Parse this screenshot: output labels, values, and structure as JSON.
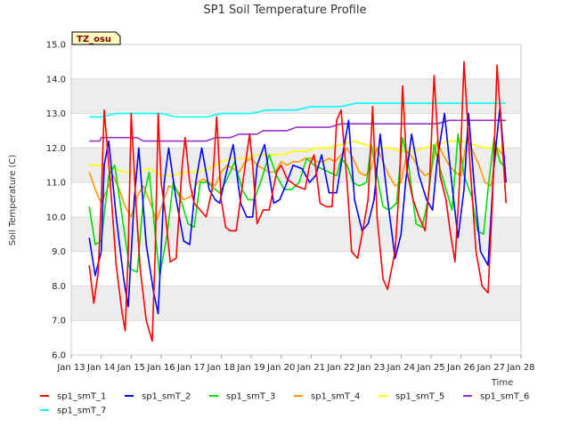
{
  "chart_data": {
    "type": "line",
    "title": "SP1 Soil Temperature Profile",
    "xlabel": "Time",
    "ylabel": "Soil Temperature (C)",
    "badge": "TZ_osu",
    "ylim": [
      6.0,
      15.0
    ],
    "yticks": [
      "6.0",
      "7.0",
      "8.0",
      "9.0",
      "10.0",
      "11.0",
      "12.0",
      "13.0",
      "14.0",
      "15.0"
    ],
    "xlim": [
      13,
      28
    ],
    "xtick_values": [
      13,
      14,
      15,
      16,
      17,
      18,
      19,
      20,
      21,
      22,
      23,
      24,
      25,
      26,
      27,
      28
    ],
    "xticks": [
      "Jan 13",
      "Jan 14",
      "Jan 15",
      "Jan 16",
      "Jan 17",
      "Jan 18",
      "Jan 19",
      "Jan 20",
      "Jan 21",
      "Jan 22",
      "Jan 23",
      "Jan 24",
      "Jan 25",
      "Jan 26",
      "Jan 27",
      "Jan 28"
    ],
    "legend_position": "bottom",
    "series": [
      {
        "name": "sp1_smT_1",
        "color": "#ff0000",
        "x": [
          13.6,
          13.75,
          13.9,
          14.0,
          14.1,
          14.3,
          14.5,
          14.7,
          14.8,
          14.9,
          15.0,
          15.15,
          15.3,
          15.5,
          15.7,
          15.8,
          15.9,
          16.0,
          16.15,
          16.3,
          16.5,
          16.7,
          16.8,
          16.95,
          17.1,
          17.3,
          17.5,
          17.7,
          17.85,
          18.0,
          18.15,
          18.3,
          18.5,
          18.8,
          18.95,
          19.05,
          19.2,
          19.4,
          19.6,
          19.85,
          20.0,
          20.2,
          20.5,
          20.8,
          20.95,
          21.1,
          21.3,
          21.5,
          21.7,
          21.85,
          22.0,
          22.2,
          22.35,
          22.55,
          22.7,
          22.9,
          23.05,
          23.2,
          23.4,
          23.55,
          23.8,
          23.95,
          24.05,
          24.2,
          24.4,
          24.6,
          24.8,
          24.95,
          25.1,
          25.3,
          25.5,
          25.65,
          25.8,
          25.95,
          26.1,
          26.3,
          26.5,
          26.7,
          26.9,
          27.05,
          27.2,
          27.35,
          27.5
        ],
        "values": [
          8.6,
          7.5,
          8.4,
          10.5,
          13.1,
          11.0,
          8.6,
          7.2,
          6.7,
          9.0,
          13.0,
          10.5,
          8.5,
          7.0,
          6.4,
          9.0,
          13.0,
          11.0,
          10.0,
          8.7,
          8.8,
          11.5,
          12.3,
          11.0,
          10.4,
          10.2,
          10.0,
          10.8,
          12.9,
          10.5,
          9.7,
          9.6,
          9.6,
          11.5,
          12.4,
          11.5,
          9.8,
          10.2,
          10.2,
          11.3,
          11.5,
          11.1,
          10.9,
          10.8,
          11.5,
          11.8,
          10.4,
          10.3,
          10.3,
          12.8,
          13.1,
          11.0,
          9.0,
          8.8,
          9.5,
          10.5,
          13.2,
          10.0,
          8.2,
          7.9,
          9.0,
          11.0,
          13.8,
          11.3,
          10.5,
          10.0,
          9.6,
          11.0,
          14.1,
          11.2,
          10.5,
          9.5,
          8.7,
          11.0,
          14.5,
          11.5,
          9.0,
          8.0,
          7.8,
          10.5,
          14.4,
          12.5,
          10.4
        ]
      },
      {
        "name": "sp1_smT_2",
        "color": "#0000ff",
        "x": [
          13.6,
          13.8,
          14.0,
          14.1,
          14.25,
          14.5,
          14.75,
          14.9,
          15.1,
          15.25,
          15.5,
          15.75,
          15.9,
          16.1,
          16.25,
          16.5,
          16.75,
          16.95,
          17.15,
          17.35,
          17.6,
          17.8,
          17.95,
          18.15,
          18.4,
          18.65,
          18.85,
          19.05,
          19.2,
          19.45,
          19.75,
          19.95,
          20.15,
          20.4,
          20.7,
          20.95,
          21.15,
          21.35,
          21.6,
          21.85,
          22.05,
          22.25,
          22.45,
          22.7,
          22.9,
          23.1,
          23.3,
          23.55,
          23.8,
          24.0,
          24.15,
          24.35,
          24.6,
          24.85,
          25.05,
          25.2,
          25.45,
          25.7,
          25.9,
          26.1,
          26.25,
          26.45,
          26.65,
          26.9,
          27.1,
          27.3,
          27.5
        ],
        "values": [
          9.4,
          8.3,
          9.0,
          11.5,
          12.2,
          10.0,
          8.2,
          7.4,
          10.5,
          12.0,
          9.2,
          7.8,
          7.2,
          11.0,
          12.0,
          10.5,
          9.3,
          9.2,
          11.0,
          12.0,
          10.8,
          10.5,
          10.4,
          11.2,
          12.1,
          10.4,
          10.0,
          10.0,
          11.5,
          12.1,
          10.4,
          10.5,
          10.9,
          11.5,
          11.4,
          11.0,
          11.2,
          11.8,
          10.7,
          10.7,
          11.8,
          12.8,
          10.5,
          9.6,
          9.8,
          10.5,
          12.4,
          10.5,
          8.8,
          9.5,
          11.0,
          12.4,
          11.2,
          10.5,
          10.2,
          11.6,
          13.0,
          10.9,
          9.4,
          10.8,
          13.0,
          10.8,
          9.0,
          8.6,
          11.5,
          13.2,
          11.0
        ]
      },
      {
        "name": "sp1_smT_3",
        "color": "#00dd00",
        "x": [
          13.6,
          13.8,
          14.0,
          14.25,
          14.45,
          14.7,
          14.95,
          15.2,
          15.4,
          15.6,
          15.8,
          15.95,
          16.2,
          16.4,
          16.65,
          16.9,
          17.1,
          17.3,
          17.55,
          17.8,
          17.95,
          18.2,
          18.45,
          18.7,
          18.9,
          19.1,
          19.35,
          19.6,
          19.85,
          20.1,
          20.35,
          20.6,
          20.85,
          21.1,
          21.35,
          21.6,
          21.85,
          22.0,
          22.2,
          22.4,
          22.6,
          22.85,
          23.0,
          23.2,
          23.4,
          23.6,
          23.85,
          24.05,
          24.25,
          24.5,
          24.7,
          24.9,
          25.1,
          25.3,
          25.5,
          25.7,
          25.9,
          26.1,
          26.35,
          26.55,
          26.75,
          26.9,
          27.1,
          27.3,
          27.5
        ],
        "values": [
          10.3,
          9.2,
          9.3,
          11.2,
          11.5,
          10.0,
          8.5,
          8.4,
          10.5,
          11.3,
          9.5,
          8.3,
          9.5,
          11.0,
          10.5,
          9.8,
          9.7,
          11.0,
          11.0,
          10.8,
          10.7,
          11.1,
          11.6,
          10.8,
          10.5,
          10.5,
          11.1,
          11.8,
          11.2,
          10.8,
          10.8,
          11.0,
          11.7,
          11.5,
          11.4,
          11.3,
          11.2,
          11.7,
          11.5,
          11.0,
          10.9,
          11.0,
          12.1,
          11.2,
          10.3,
          10.2,
          10.4,
          12.3,
          11.5,
          9.8,
          9.7,
          10.5,
          12.1,
          11.4,
          10.8,
          10.2,
          12.4,
          11.2,
          10.6,
          9.6,
          9.5,
          10.8,
          12.3,
          11.6,
          11.4
        ]
      },
      {
        "name": "sp1_smT_4",
        "color": "#ff9900",
        "x": [
          13.6,
          13.8,
          14.0,
          14.2,
          14.4,
          14.6,
          14.8,
          15.0,
          15.2,
          15.4,
          15.6,
          15.85,
          16.05,
          16.25,
          16.5,
          16.75,
          17.0,
          17.2,
          17.4,
          17.6,
          17.8,
          18.0,
          18.2,
          18.4,
          18.6,
          18.8,
          19.0,
          19.2,
          19.4,
          19.6,
          19.8,
          20.0,
          20.2,
          20.4,
          20.6,
          20.8,
          21.0,
          21.2,
          21.4,
          21.6,
          21.8,
          22.0,
          22.2,
          22.4,
          22.6,
          22.8,
          23.0,
          23.2,
          23.4,
          23.6,
          23.8,
          24.0,
          24.2,
          24.4,
          24.6,
          24.8,
          25.0,
          25.2,
          25.4,
          25.6,
          25.8,
          26.0,
          26.2,
          26.4,
          26.6,
          26.8,
          27.0,
          27.2,
          27.4,
          27.5
        ],
        "values": [
          11.3,
          10.8,
          10.4,
          10.8,
          11.2,
          10.8,
          10.3,
          10.0,
          10.6,
          10.9,
          10.5,
          9.9,
          10.4,
          10.9,
          10.8,
          10.5,
          10.6,
          11.0,
          11.1,
          11.0,
          10.9,
          11.3,
          11.5,
          11.4,
          11.3,
          11.6,
          11.7,
          11.5,
          11.4,
          11.3,
          11.3,
          11.6,
          11.5,
          11.6,
          11.6,
          11.7,
          11.7,
          11.6,
          11.6,
          11.7,
          11.6,
          11.8,
          12.0,
          11.7,
          11.3,
          11.2,
          11.4,
          12.0,
          11.6,
          11.2,
          10.9,
          11.0,
          11.9,
          11.7,
          11.4,
          11.2,
          11.3,
          12.2,
          11.8,
          11.5,
          11.3,
          11.2,
          12.3,
          11.9,
          11.5,
          11.0,
          10.9,
          12.0,
          11.8,
          11.7
        ]
      },
      {
        "name": "sp1_smT_5",
        "color": "#ffff00",
        "x": [
          13.6,
          14.0,
          14.4,
          14.8,
          15.2,
          15.6,
          16.0,
          16.4,
          16.8,
          17.2,
          17.6,
          18.0,
          18.4,
          18.8,
          19.2,
          19.6,
          20.0,
          20.4,
          20.8,
          21.2,
          21.6,
          22.0,
          22.4,
          22.8,
          23.2,
          23.6,
          24.0,
          24.4,
          24.8,
          25.2,
          25.6,
          26.0,
          26.4,
          26.8,
          27.2,
          27.5
        ],
        "values": [
          11.5,
          11.5,
          11.4,
          11.3,
          11.3,
          11.4,
          11.2,
          11.2,
          11.3,
          11.3,
          11.4,
          11.6,
          11.7,
          11.7,
          11.8,
          11.8,
          11.8,
          11.9,
          11.9,
          12.0,
          12.0,
          12.1,
          12.2,
          12.1,
          12.0,
          12.0,
          11.9,
          11.9,
          12.0,
          12.1,
          12.2,
          12.2,
          12.1,
          12.0,
          12.0,
          12.0
        ]
      },
      {
        "name": "sp1_smT_6",
        "color": "#9933cc",
        "x": [
          13.6,
          13.95,
          14.0,
          14.6,
          15.2,
          15.4,
          16.2,
          16.8,
          17.5,
          17.8,
          18.3,
          18.6,
          19.2,
          19.4,
          20.2,
          20.5,
          21.2,
          21.6,
          22.0,
          22.6,
          23.2,
          23.8,
          24.4,
          25.2,
          25.6,
          26.2,
          26.8,
          27.5
        ],
        "values": [
          12.2,
          12.2,
          12.3,
          12.3,
          12.3,
          12.2,
          12.2,
          12.2,
          12.2,
          12.3,
          12.3,
          12.4,
          12.4,
          12.5,
          12.5,
          12.6,
          12.6,
          12.6,
          12.7,
          12.7,
          12.7,
          12.7,
          12.7,
          12.7,
          12.8,
          12.8,
          12.8,
          12.8
        ]
      },
      {
        "name": "sp1_smT_7",
        "color": "#00ffff",
        "x": [
          13.6,
          14.0,
          14.5,
          15.0,
          15.5,
          16.0,
          16.5,
          17.0,
          17.5,
          18.0,
          18.5,
          19.0,
          19.5,
          20.0,
          20.5,
          21.0,
          21.5,
          22.0,
          22.5,
          23.0,
          23.5,
          24.0,
          24.5,
          25.0,
          25.5,
          26.0,
          26.5,
          27.0,
          27.5
        ],
        "values": [
          12.9,
          12.9,
          13.0,
          13.0,
          13.0,
          13.0,
          12.9,
          12.9,
          12.9,
          13.0,
          13.0,
          13.0,
          13.1,
          13.1,
          13.1,
          13.2,
          13.2,
          13.2,
          13.3,
          13.3,
          13.3,
          13.3,
          13.3,
          13.3,
          13.3,
          13.3,
          13.3,
          13.3,
          13.3
        ]
      }
    ]
  }
}
